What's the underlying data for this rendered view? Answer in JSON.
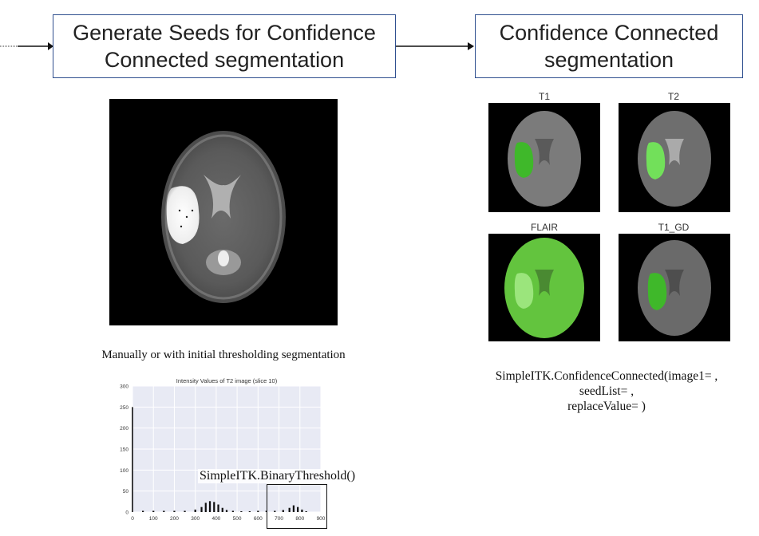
{
  "steps": {
    "seeds_title": "Generate Seeds for Confidence Connected segmentation",
    "cc_title": "Confidence Connected segmentation"
  },
  "seeds_caption": "Manually or with initial thresholding segmentation",
  "binary_threshold_fn": "SimpleITK.BinaryThreshold()",
  "cc_code": {
    "line1": "SimpleITK.ConfidenceConnected(image1= ,",
    "line2": "seedList= ,",
    "line3": "replaceValue= )"
  },
  "panels": {
    "t1": "T1",
    "t2": "T2",
    "flair": "FLAIR",
    "t1gd": "T1_GD"
  },
  "colors": {
    "box_border": "#2f4f8f",
    "segmentation_green": "#5fd23a",
    "histogram_bg": "#e8eaf4"
  },
  "chart_data": {
    "type": "bar",
    "title": "Intensity Values of T2 image (slice 10)",
    "xlabel": "",
    "ylabel": "",
    "xlim": [
      0,
      900
    ],
    "ylim": [
      0,
      300
    ],
    "x_ticks": [
      0,
      100,
      200,
      300,
      400,
      500,
      600,
      700,
      800,
      900
    ],
    "y_ticks": [
      0,
      50,
      100,
      150,
      200,
      250,
      300
    ],
    "grid": true,
    "series": [
      {
        "x": [
          0,
          50,
          100,
          150,
          200,
          250,
          300,
          330,
          350,
          370,
          390,
          410,
          430,
          450,
          480,
          520,
          560,
          600,
          640,
          680,
          720,
          750,
          770,
          790,
          810,
          830,
          850
        ],
        "values": [
          250,
          3,
          3,
          3,
          3,
          3,
          6,
          12,
          22,
          26,
          24,
          18,
          10,
          5,
          3,
          2,
          2,
          3,
          3,
          3,
          5,
          10,
          16,
          12,
          6,
          2,
          0
        ]
      }
    ]
  }
}
